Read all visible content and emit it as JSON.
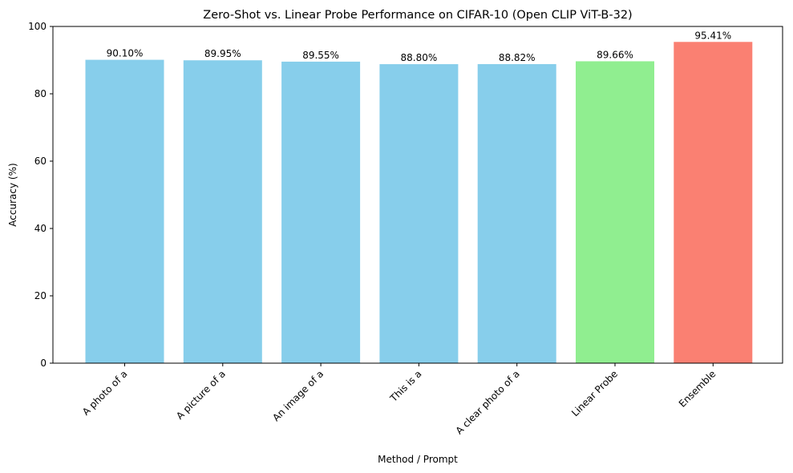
{
  "chart_data": {
    "type": "bar",
    "title": "Zero-Shot vs. Linear Probe Performance on CIFAR-10 (Open CLIP ViT-B-32)",
    "xlabel": "Method / Prompt",
    "ylabel": "Accuracy (%)",
    "ylim": [
      0,
      100
    ],
    "yticks": [
      0,
      20,
      40,
      60,
      80,
      100
    ],
    "grid": false,
    "categories": [
      "A photo of a",
      "A picture of a",
      "An image of a",
      "This is a",
      "A clear photo of a",
      "Linear Probe",
      "Ensemble"
    ],
    "values": [
      90.1,
      89.95,
      89.55,
      88.8,
      88.82,
      89.66,
      95.41
    ],
    "value_labels": [
      "90.10%",
      "89.95%",
      "89.55%",
      "88.80%",
      "88.82%",
      "89.66%",
      "95.41%"
    ],
    "colors": [
      "#87ceeb",
      "#87ceeb",
      "#87ceeb",
      "#87ceeb",
      "#87ceeb",
      "#90ee90",
      "#fa8072"
    ]
  }
}
